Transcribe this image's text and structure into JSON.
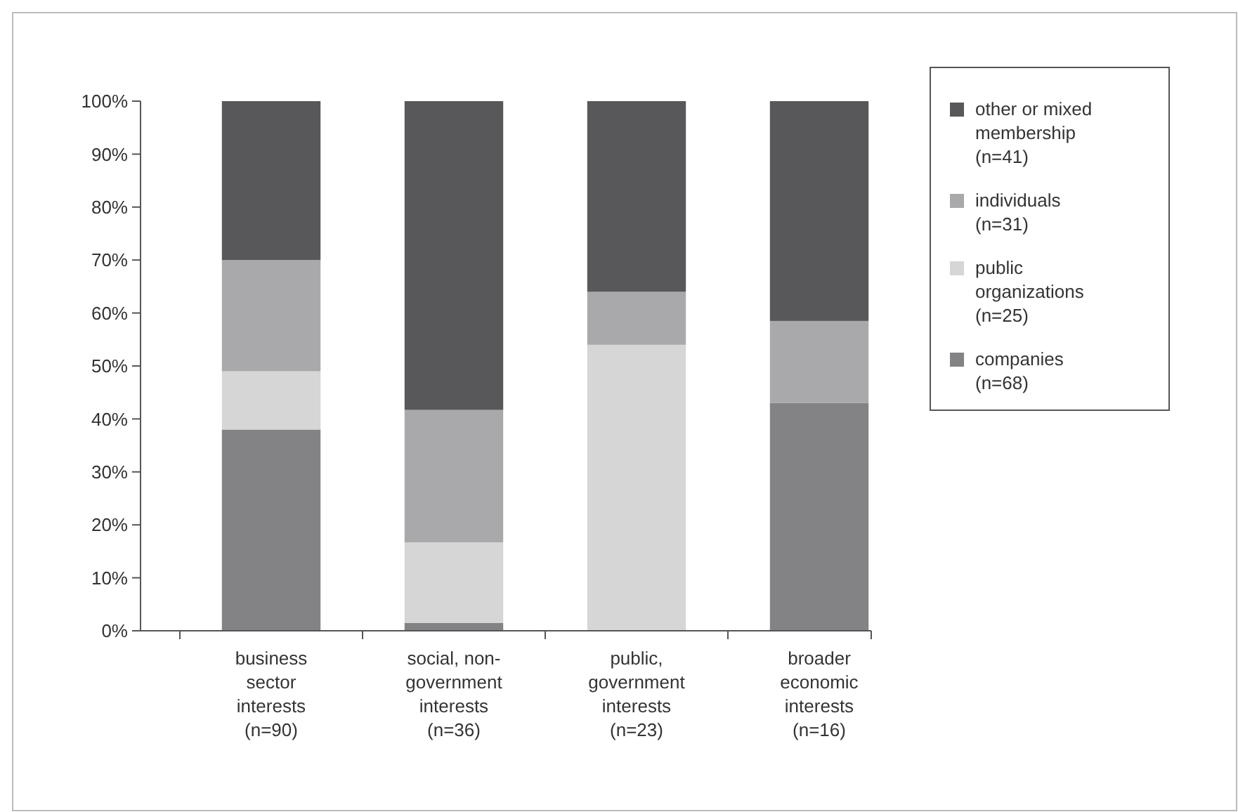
{
  "chart_data": {
    "type": "bar",
    "stacked": true,
    "categories": [
      "business sector interests (n=90)",
      "social, non-government interests (n=36)",
      "public, government interests (n=23)",
      "broader economic interests (n=16)"
    ],
    "series": [
      {
        "name": "companies (n=68)",
        "color": "#838385",
        "values": [
          38,
          1.5,
          0,
          43
        ]
      },
      {
        "name": "public organizations (n=25)",
        "color": "#d6d6d7",
        "values": [
          11,
          15.2,
          54,
          0
        ]
      },
      {
        "name": "individuals (n=31)",
        "color": "#a9a9ab",
        "values": [
          21,
          25,
          10,
          15.5
        ]
      },
      {
        "name": "other or mixed membership (n=41)",
        "color": "#58585a",
        "values": [
          30,
          58.3,
          36,
          41.5
        ]
      }
    ],
    "ylim": [
      0,
      100
    ],
    "yticks": [
      {
        "value": 0,
        "label": "0%"
      },
      {
        "value": 10,
        "label": "10%"
      },
      {
        "value": 20,
        "label": "20%"
      },
      {
        "value": 30,
        "label": "30%"
      },
      {
        "value": 40,
        "label": "40%"
      },
      {
        "value": 50,
        "label": "50%"
      },
      {
        "value": 60,
        "label": "60%"
      },
      {
        "value": 70,
        "label": "70%"
      },
      {
        "value": 80,
        "label": "80%"
      },
      {
        "value": 90,
        "label": "90%"
      },
      {
        "value": 100,
        "label": "100%"
      }
    ],
    "legend": "right"
  }
}
